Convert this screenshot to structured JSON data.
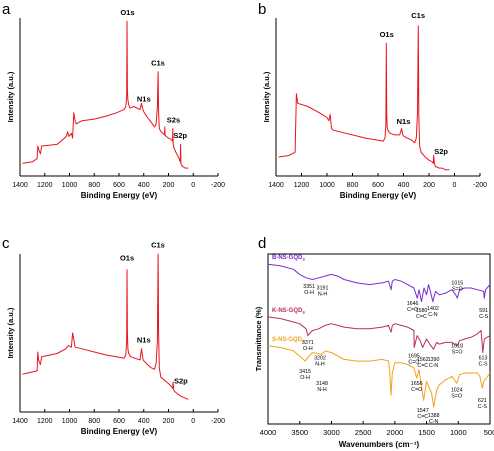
{
  "panel_labels": [
    "a",
    "b",
    "c",
    "d"
  ],
  "chart_data": [
    {
      "panel": "a",
      "type": "line",
      "xlabel": "Binding Energy (eV)",
      "ylabel": "Intensity (a.u.)",
      "xlim": [
        1400,
        -200
      ],
      "x_ticks": [
        1400,
        1200,
        1000,
        800,
        600,
        400,
        200,
        0,
        -200
      ],
      "series": [
        {
          "color": "#e8141c",
          "x": [
            1380,
            1300,
            1262,
            1256,
            1250,
            1235,
            1225,
            1100,
            1025,
            1015,
            1005,
            985,
            975,
            965,
            955,
            945,
            900,
            800,
            700,
            620,
            560,
            545,
            538,
            535,
            532,
            528,
            522,
            510,
            480,
            430,
            418,
            410,
            402,
            395,
            370,
            340,
            312,
            300,
            290,
            284,
            280,
            274,
            260,
            232,
            230,
            228,
            218,
            200,
            175,
            168,
            165,
            162,
            156,
            140,
            120,
            105,
            102,
            100,
            96,
            85,
            65,
            50,
            40
          ],
          "y": [
            0.08,
            0.09,
            0.11,
            0.19,
            0.17,
            0.14,
            0.19,
            0.2,
            0.25,
            0.28,
            0.25,
            0.27,
            0.24,
            0.4,
            0.35,
            0.33,
            0.35,
            0.36,
            0.38,
            0.4,
            0.42,
            0.44,
            0.5,
            0.98,
            0.55,
            0.48,
            0.45,
            0.43,
            0.44,
            0.42,
            0.46,
            0.43,
            0.41,
            0.4,
            0.37,
            0.34,
            0.31,
            0.33,
            0.44,
            0.66,
            0.4,
            0.3,
            0.28,
            0.26,
            0.31,
            0.26,
            0.25,
            0.24,
            0.23,
            0.22,
            0.3,
            0.2,
            0.18,
            0.15,
            0.12,
            0.09,
            0.2,
            0.08,
            0.07,
            0.06,
            0.05,
            0.05,
            0.05
          ]
        }
      ],
      "annotations": [
        {
          "text": "O1s",
          "x": 532,
          "y": 1.02
        },
        {
          "text": "C1s",
          "x": 285,
          "y": 0.7
        },
        {
          "text": "N1s",
          "x": 400,
          "y": 0.47
        },
        {
          "text": "S2s",
          "x": 160,
          "y": 0.34
        },
        {
          "text": "S2p",
          "x": 105,
          "y": 0.24
        }
      ]
    },
    {
      "panel": "b",
      "type": "line",
      "xlabel": "Binding Energy (eV)",
      "ylabel": "Intensity (a.u.)",
      "xlim": [
        1400,
        -200
      ],
      "x_ticks": [
        1400,
        1200,
        1000,
        800,
        600,
        400,
        200,
        0,
        -200
      ],
      "series": [
        {
          "color": "#e8141c",
          "x": [
            1380,
            1300,
            1250,
            1240,
            1230,
            1150,
            1060,
            1000,
            985,
            975,
            965,
            950,
            900,
            800,
            700,
            620,
            560,
            545,
            538,
            535,
            532,
            528,
            522,
            505,
            470,
            430,
            415,
            405,
            395,
            370,
            340,
            312,
            300,
            290,
            284,
            280,
            274,
            262,
            230,
            200,
            175,
            166,
            163,
            158,
            150,
            120,
            100,
            70,
            40
          ],
          "y": [
            0.12,
            0.13,
            0.15,
            0.52,
            0.46,
            0.44,
            0.4,
            0.37,
            0.35,
            0.39,
            0.3,
            0.29,
            0.28,
            0.26,
            0.24,
            0.23,
            0.22,
            0.24,
            0.33,
            0.84,
            0.4,
            0.31,
            0.29,
            0.27,
            0.26,
            0.26,
            0.3,
            0.26,
            0.25,
            0.24,
            0.23,
            0.21,
            0.24,
            0.4,
            0.95,
            0.4,
            0.19,
            0.15,
            0.12,
            0.1,
            0.09,
            0.08,
            0.13,
            0.08,
            0.06,
            0.05,
            0.05,
            0.04,
            0.04
          ]
        }
      ],
      "annotations": [
        {
          "text": "O1s",
          "x": 532,
          "y": 0.88
        },
        {
          "text": "C1s",
          "x": 285,
          "y": 1.0
        },
        {
          "text": "N1s",
          "x": 400,
          "y": 0.33
        },
        {
          "text": "S2p",
          "x": 105,
          "y": 0.14
        }
      ]
    },
    {
      "panel": "c",
      "type": "line",
      "xlabel": "Binding Energy (eV)",
      "ylabel": "Intensity (a.u.)",
      "xlim": [
        1400,
        -200
      ],
      "x_ticks": [
        1400,
        1200,
        1000,
        800,
        600,
        400,
        200,
        0,
        -200
      ],
      "series": [
        {
          "color": "#e8141c",
          "x": [
            1380,
            1320,
            1262,
            1256,
            1250,
            1235,
            1225,
            1100,
            1030,
            1010,
            985,
            975,
            965,
            955,
            900,
            800,
            700,
            620,
            560,
            545,
            538,
            535,
            532,
            528,
            522,
            505,
            470,
            430,
            418,
            405,
            395,
            370,
            340,
            312,
            300,
            290,
            284,
            280,
            274,
            262,
            230,
            200,
            175,
            166,
            163,
            158,
            150,
            120,
            100,
            70,
            40
          ],
          "y": [
            0.24,
            0.25,
            0.26,
            0.38,
            0.33,
            0.3,
            0.35,
            0.37,
            0.4,
            0.42,
            0.41,
            0.5,
            0.46,
            0.41,
            0.4,
            0.38,
            0.36,
            0.35,
            0.34,
            0.36,
            0.45,
            0.9,
            0.5,
            0.4,
            0.37,
            0.35,
            0.34,
            0.33,
            0.4,
            0.33,
            0.32,
            0.3,
            0.28,
            0.27,
            0.31,
            0.45,
            1.0,
            0.5,
            0.28,
            0.22,
            0.2,
            0.18,
            0.16,
            0.15,
            0.19,
            0.14,
            0.13,
            0.11,
            0.1,
            0.09,
            0.08
          ]
        }
      ],
      "annotations": [
        {
          "text": "O1s",
          "x": 535,
          "y": 0.96
        },
        {
          "text": "C1s",
          "x": 285,
          "y": 1.04
        },
        {
          "text": "N1s",
          "x": 400,
          "y": 0.44
        },
        {
          "text": "S2p",
          "x": 100,
          "y": 0.18
        }
      ]
    },
    {
      "panel": "d",
      "type": "line",
      "xlabel": "Wavenumbers (cm⁻¹)",
      "ylabel": "Transmittance (%)",
      "xlim": [
        4000,
        500
      ],
      "x_ticks": [
        4000,
        3500,
        3000,
        2500,
        2000,
        1500,
        1000,
        500
      ],
      "series": [
        {
          "name": "B-NS-GQD",
          "name_sub": "s",
          "color": "#7b2bd1",
          "x": [
            4000,
            3800,
            3600,
            3500,
            3400,
            3300,
            3200,
            3100,
            3000,
            2900,
            2800,
            2600,
            2400,
            2200,
            2100,
            2060,
            2040,
            2000,
            1900,
            1800,
            1700,
            1646,
            1620,
            1580,
            1540,
            1500,
            1470,
            1440,
            1402,
            1360,
            1300,
            1200,
            1100,
            1040,
            1015,
            980,
            900,
            800,
            700,
            600,
            591,
            570,
            500
          ],
          "y": [
            0.94,
            0.93,
            0.91,
            0.88,
            0.86,
            0.85,
            0.86,
            0.87,
            0.88,
            0.87,
            0.85,
            0.83,
            0.82,
            0.83,
            0.84,
            0.79,
            0.84,
            0.85,
            0.84,
            0.82,
            0.8,
            0.74,
            0.79,
            0.72,
            0.8,
            0.76,
            0.82,
            0.78,
            0.72,
            0.78,
            0.76,
            0.77,
            0.79,
            0.76,
            0.74,
            0.79,
            0.8,
            0.8,
            0.79,
            0.78,
            0.74,
            0.79,
            0.82
          ]
        },
        {
          "name": "K-NS-GQD",
          "name_sub": "s",
          "color": "#b5305a",
          "x": [
            4000,
            3800,
            3600,
            3500,
            3400,
            3371,
            3300,
            3202,
            3100,
            3000,
            2900,
            2800,
            2600,
            2400,
            2200,
            2100,
            2060,
            2040,
            2000,
            1900,
            1800,
            1700,
            1695,
            1650,
            1600,
            1562,
            1500,
            1450,
            1390,
            1340,
            1300,
            1200,
            1100,
            1018,
            980,
            900,
            800,
            700,
            640,
            613,
            590,
            500
          ],
          "y": [
            0.63,
            0.62,
            0.6,
            0.59,
            0.56,
            0.52,
            0.55,
            0.56,
            0.58,
            0.59,
            0.58,
            0.57,
            0.56,
            0.56,
            0.57,
            0.58,
            0.54,
            0.58,
            0.59,
            0.58,
            0.57,
            0.55,
            0.45,
            0.52,
            0.49,
            0.45,
            0.5,
            0.47,
            0.44,
            0.48,
            0.47,
            0.48,
            0.48,
            0.46,
            0.49,
            0.5,
            0.51,
            0.53,
            0.55,
            0.42,
            0.5,
            0.52
          ]
        },
        {
          "name": "S-NS-GQD",
          "name_sub": "s",
          "color": "#f3a21e",
          "x": [
            4000,
            3800,
            3600,
            3500,
            3415,
            3350,
            3300,
            3148,
            3100,
            3000,
            2900,
            2800,
            2600,
            2400,
            2200,
            2100,
            2080,
            2060,
            2040,
            2000,
            1900,
            1800,
            1700,
            1656,
            1620,
            1547,
            1500,
            1420,
            1388,
            1340,
            1300,
            1200,
            1100,
            1024,
            980,
            900,
            800,
            700,
            660,
            621,
            600,
            500
          ],
          "y": [
            0.46,
            0.45,
            0.43,
            0.4,
            0.37,
            0.4,
            0.42,
            0.41,
            0.43,
            0.42,
            0.4,
            0.38,
            0.37,
            0.37,
            0.38,
            0.37,
            0.3,
            0.17,
            0.3,
            0.36,
            0.36,
            0.35,
            0.33,
            0.27,
            0.32,
            0.14,
            0.25,
            0.18,
            0.1,
            0.2,
            0.23,
            0.26,
            0.28,
            0.24,
            0.29,
            0.3,
            0.3,
            0.3,
            0.28,
            0.21,
            0.25,
            0.3
          ]
        }
      ],
      "annotations": [
        {
          "text": "3351",
          "text2": "O-H",
          "x": 3351,
          "y": 0.8
        },
        {
          "text": "3191",
          "text2": "N-H",
          "x": 3140,
          "y": 0.79
        },
        {
          "text": "1646",
          "text2": "C=O",
          "x": 1720,
          "y": 0.7
        },
        {
          "text": "1580",
          "text2": "C=C",
          "x": 1580,
          "y": 0.66
        },
        {
          "text": "1402",
          "text2": "C-N",
          "x": 1400,
          "y": 0.67
        },
        {
          "text": "1015",
          "text2": "S=O",
          "x": 1015,
          "y": 0.82
        },
        {
          "text": "591",
          "text2": "C-S",
          "x": 600,
          "y": 0.66
        },
        {
          "text": "3371",
          "text2": "O-H",
          "x": 3371,
          "y": 0.47
        },
        {
          "text": "3202",
          "text2": "N-H",
          "x": 3180,
          "y": 0.38
        },
        {
          "text": "1695",
          "text2": "C=O",
          "x": 1700,
          "y": 0.39
        },
        {
          "text": "1562",
          "text2": "C=C",
          "x": 1560,
          "y": 0.37
        },
        {
          "text": "1390",
          "text2": "C-N",
          "x": 1390,
          "y": 0.37
        },
        {
          "text": "1018",
          "text2": "S=O",
          "x": 1018,
          "y": 0.45
        },
        {
          "text": "613",
          "text2": "C-S",
          "x": 610,
          "y": 0.38
        },
        {
          "text": "3415",
          "text2": "O-H",
          "x": 3415,
          "y": 0.3
        },
        {
          "text": "3148",
          "text2": "N-H",
          "x": 3148,
          "y": 0.23
        },
        {
          "text": "1656",
          "text2": "C=O",
          "x": 1656,
          "y": 0.23
        },
        {
          "text": "1547",
          "text2": "C=C",
          "x": 1560,
          "y": 0.07
        },
        {
          "text": "1388",
          "text2": "C-N",
          "x": 1388,
          "y": 0.04
        },
        {
          "text": "1024",
          "text2": "S=O",
          "x": 1024,
          "y": 0.19
        },
        {
          "text": "621",
          "text2": "C-S",
          "x": 621,
          "y": 0.13
        }
      ]
    }
  ]
}
